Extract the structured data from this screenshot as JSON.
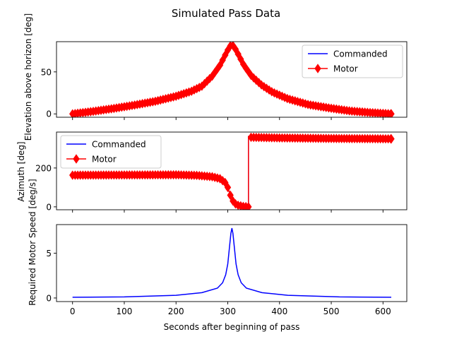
{
  "figure": {
    "title": "Simulated Pass Data"
  },
  "colors": {
    "commanded": "#0000ff",
    "motor": "#ff0000",
    "axis": "#000000"
  },
  "chart_data": [
    {
      "type": "line",
      "panel": "elevation",
      "ylabel": "Elevation above horizon [deg]",
      "xlim": [
        -31,
        646
      ],
      "ylim": [
        -4,
        86
      ],
      "yticks": [
        0,
        50
      ],
      "x_tick_labels_visible": false,
      "legend": {
        "placement": "top-right",
        "entries": [
          "Commanded",
          "Motor"
        ]
      },
      "series": [
        {
          "name": "Commanded",
          "style": "line",
          "key": "elevation"
        },
        {
          "name": "Motor",
          "style": "line-diamond",
          "key": "elevation"
        }
      ],
      "x": [
        0,
        40,
        80,
        120,
        160,
        200,
        230,
        250,
        270,
        285,
        295,
        300,
        305,
        308,
        311,
        316,
        321,
        331,
        346,
        366,
        386,
        416,
        456,
        496,
        536,
        576,
        616
      ],
      "elevation": [
        0,
        3,
        6.5,
        10.5,
        15,
        21,
        27,
        33,
        45,
        58,
        70,
        76,
        81,
        82,
        81,
        76,
        70,
        58,
        45,
        34,
        26,
        18,
        11,
        7,
        3.5,
        1.5,
        0
      ]
    },
    {
      "type": "line",
      "panel": "azimuth",
      "ylabel": "Azimuth [deg]",
      "xlim": [
        -31,
        646
      ],
      "ylim": [
        -15,
        385
      ],
      "yticks": [
        0,
        200
      ],
      "x_tick_labels_visible": false,
      "legend": {
        "placement": "top-left",
        "entries": [
          "Commanded",
          "Motor"
        ]
      },
      "series": [
        {
          "name": "Commanded",
          "style": "line",
          "key": "azimuth"
        },
        {
          "name": "Motor",
          "style": "line-diamond",
          "key": "azimuth"
        }
      ],
      "x": [
        0,
        100,
        200,
        240,
        270,
        285,
        295,
        300,
        305,
        310,
        315,
        320,
        330,
        340,
        340,
        345,
        400,
        500,
        616
      ],
      "azimuth": [
        163,
        164,
        165,
        162,
        155,
        145,
        125,
        100,
        60,
        30,
        15,
        8,
        2,
        0,
        362,
        358,
        355,
        352,
        350
      ]
    },
    {
      "type": "line",
      "panel": "speed",
      "ylabel": "Required Motor Speed [deg/s]",
      "xlabel": "Seconds after beginning of pass",
      "xlim": [
        -31,
        646
      ],
      "ylim": [
        -0.4,
        8.2
      ],
      "yticks": [
        0,
        5
      ],
      "xticks": [
        0,
        100,
        200,
        300,
        400,
        500,
        600
      ],
      "series": [
        {
          "name": "",
          "style": "line",
          "key": "speed"
        }
      ],
      "x": [
        0,
        100,
        200,
        250,
        280,
        290,
        296,
        300,
        303,
        306,
        308,
        310,
        313,
        316,
        320,
        326,
        336,
        366,
        416,
        516,
        616
      ],
      "speed": [
        0.08,
        0.12,
        0.3,
        0.6,
        1.1,
        1.7,
        2.6,
        3.8,
        5.5,
        7.2,
        7.8,
        7.2,
        5.5,
        3.8,
        2.6,
        1.7,
        1.1,
        0.6,
        0.3,
        0.12,
        0.08
      ]
    }
  ]
}
